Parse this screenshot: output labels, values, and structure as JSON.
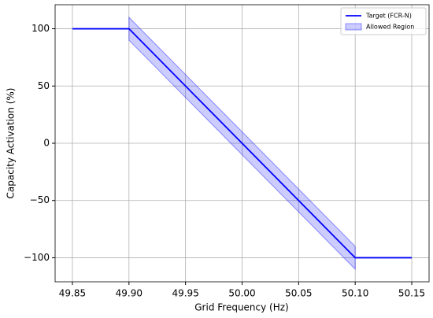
{
  "chart_data": {
    "type": "line",
    "xlabel": "Grid Frequency (Hz)",
    "ylabel": "Capacity Activation (%)",
    "xlim": [
      49.8347,
      50.1653
    ],
    "ylim": [
      -121,
      121
    ],
    "xticks": [
      49.85,
      {
        "value": 49.9,
        "label": "49.90"
      },
      49.95,
      {
        "value": 50.0,
        "label": "50.00"
      },
      50.05,
      {
        "value": 50.1,
        "label": "50.10"
      },
      50.15
    ],
    "yticks": [
      {
        "value": -100,
        "label": "−100"
      },
      {
        "value": -50,
        "label": "−50"
      },
      0,
      50,
      100
    ],
    "grid": true,
    "legend": "upper right",
    "series": [
      {
        "name": "Target (FCR-N)",
        "color": "#0000ff",
        "x": [
          49.85,
          49.9,
          50.1,
          50.15
        ],
        "values": [
          100,
          100,
          -100,
          -100
        ]
      },
      {
        "name": "Allowed Region",
        "color": "#0000ff",
        "kind": "band",
        "x": [
          49.9,
          50.1
        ],
        "upper": [
          110,
          -90
        ],
        "lower": [
          90,
          -110
        ]
      }
    ]
  }
}
